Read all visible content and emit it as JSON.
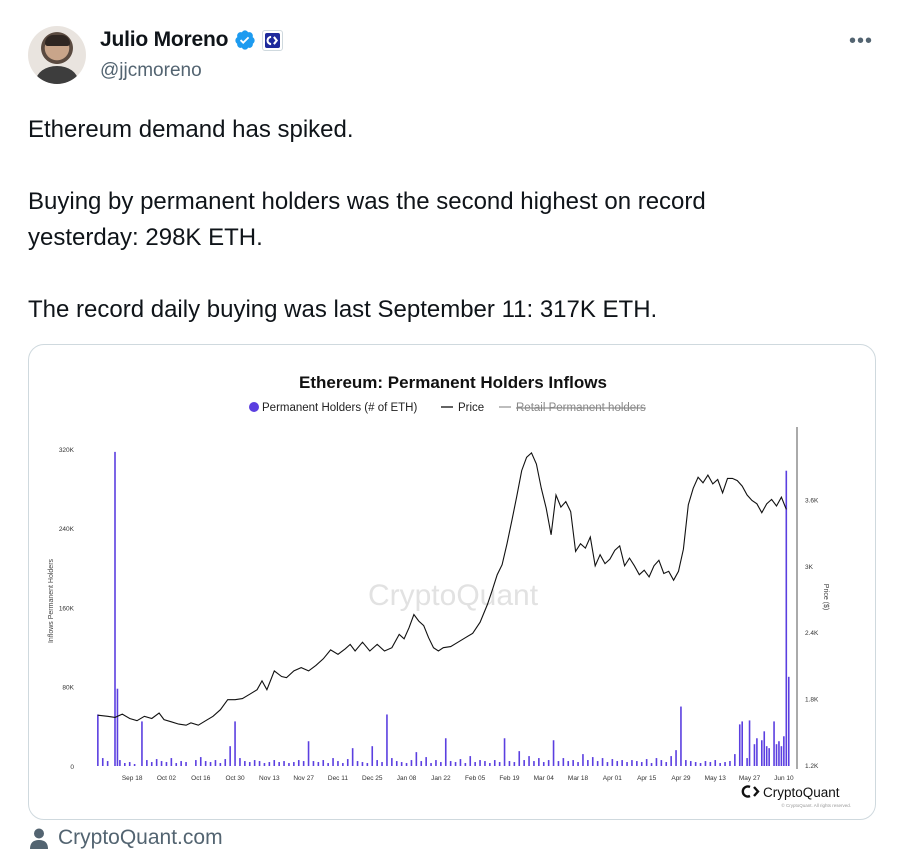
{
  "author": {
    "name": "Julio Moreno",
    "handle": "@jjcmoreno",
    "verified": true,
    "more_label": "•••"
  },
  "tweet": {
    "line1": "Ethereum demand has spiked.",
    "line2": "Buying by permanent holders was the second highest on record",
    "line3": "yesterday: 298K ETH.",
    "line4": "The record daily buying was last September 11: 317K ETH."
  },
  "card_source": "CryptoQuant.com",
  "colors": {
    "bar": "#5b3fe0",
    "price": "#111111",
    "retail": "#9a9a9a",
    "verified": "#1d9bf0"
  },
  "chart_data": {
    "type": "bar",
    "title": "Ethereum: Permanent Holders Inflows",
    "legend": [
      {
        "name": "Permanent Holders (# of ETH)",
        "marker": "dot"
      },
      {
        "name": "Price",
        "marker": "line"
      },
      {
        "name": "Retail Permanent holders",
        "marker": "line",
        "struck": true
      }
    ],
    "watermark": "CryptoQuant",
    "brand": "CryptoQuant",
    "copyright": "© CryptoQuant. All rights reserved.",
    "ylabel": "Inflows Permanent Holders",
    "y2label": "Price ($)",
    "y_ticks": [
      "0",
      "80K",
      "160K",
      "240K",
      "320K"
    ],
    "y2_ticks": [
      "1.2K",
      "1.8K",
      "2.4K",
      "3K",
      "3.6K"
    ],
    "x_ticks": [
      "Sep 18",
      "Oct 02",
      "Oct 16",
      "Oct 30",
      "Nov 13",
      "Nov 27",
      "Dec 11",
      "Dec 25",
      "Jan 08",
      "Jan 22",
      "Feb 05",
      "Feb 19",
      "Mar 04",
      "Mar 18",
      "Apr 01",
      "Apr 15",
      "Apr 29",
      "May 13",
      "May 27",
      "Jun 10"
    ],
    "ylim": [
      0,
      330000
    ],
    "y2lim": [
      1200,
      4200
    ],
    "highlights": [
      {
        "date": "Sep 11",
        "value": 317000
      },
      {
        "date": "Jun 11",
        "value": 298000
      }
    ],
    "bars": [
      {
        "day": -7,
        "value": 52000
      },
      {
        "day": -5,
        "value": 8000
      },
      {
        "day": -3,
        "value": 5000
      },
      {
        "day": 0,
        "value": 317000
      },
      {
        "day": 1,
        "value": 78000
      },
      {
        "day": 2,
        "value": 6000
      },
      {
        "day": 4,
        "value": 3000
      },
      {
        "day": 6,
        "value": 4000
      },
      {
        "day": 8,
        "value": 2000
      },
      {
        "day": 11,
        "value": 45000
      },
      {
        "day": 13,
        "value": 6000
      },
      {
        "day": 15,
        "value": 4000
      },
      {
        "day": 17,
        "value": 7000
      },
      {
        "day": 19,
        "value": 5000
      },
      {
        "day": 21,
        "value": 4000
      },
      {
        "day": 23,
        "value": 8000
      },
      {
        "day": 25,
        "value": 3000
      },
      {
        "day": 27,
        "value": 5000
      },
      {
        "day": 29,
        "value": 4000
      },
      {
        "day": 33,
        "value": 6000
      },
      {
        "day": 35,
        "value": 9000
      },
      {
        "day": 37,
        "value": 5000
      },
      {
        "day": 39,
        "value": 4000
      },
      {
        "day": 41,
        "value": 6000
      },
      {
        "day": 43,
        "value": 3000
      },
      {
        "day": 45,
        "value": 7000
      },
      {
        "day": 47,
        "value": 20000
      },
      {
        "day": 49,
        "value": 45000
      },
      {
        "day": 51,
        "value": 8000
      },
      {
        "day": 53,
        "value": 5000
      },
      {
        "day": 55,
        "value": 4000
      },
      {
        "day": 57,
        "value": 6000
      },
      {
        "day": 59,
        "value": 5000
      },
      {
        "day": 61,
        "value": 3000
      },
      {
        "day": 63,
        "value": 4000
      },
      {
        "day": 65,
        "value": 6000
      },
      {
        "day": 67,
        "value": 4000
      },
      {
        "day": 69,
        "value": 5000
      },
      {
        "day": 71,
        "value": 3000
      },
      {
        "day": 73,
        "value": 4000
      },
      {
        "day": 75,
        "value": 6000
      },
      {
        "day": 77,
        "value": 5000
      },
      {
        "day": 79,
        "value": 25000
      },
      {
        "day": 81,
        "value": 5000
      },
      {
        "day": 83,
        "value": 4000
      },
      {
        "day": 85,
        "value": 6000
      },
      {
        "day": 87,
        "value": 3000
      },
      {
        "day": 89,
        "value": 8000
      },
      {
        "day": 91,
        "value": 5000
      },
      {
        "day": 93,
        "value": 3000
      },
      {
        "day": 95,
        "value": 7000
      },
      {
        "day": 97,
        "value": 18000
      },
      {
        "day": 99,
        "value": 5000
      },
      {
        "day": 101,
        "value": 4000
      },
      {
        "day": 103,
        "value": 3000
      },
      {
        "day": 105,
        "value": 20000
      },
      {
        "day": 107,
        "value": 6000
      },
      {
        "day": 109,
        "value": 4000
      },
      {
        "day": 111,
        "value": 52000
      },
      {
        "day": 113,
        "value": 8000
      },
      {
        "day": 115,
        "value": 5000
      },
      {
        "day": 117,
        "value": 4000
      },
      {
        "day": 119,
        "value": 3000
      },
      {
        "day": 121,
        "value": 6000
      },
      {
        "day": 123,
        "value": 14000
      },
      {
        "day": 125,
        "value": 5000
      },
      {
        "day": 127,
        "value": 9000
      },
      {
        "day": 129,
        "value": 3000
      },
      {
        "day": 131,
        "value": 6000
      },
      {
        "day": 133,
        "value": 4000
      },
      {
        "day": 135,
        "value": 28000
      },
      {
        "day": 137,
        "value": 5000
      },
      {
        "day": 139,
        "value": 4000
      },
      {
        "day": 141,
        "value": 7000
      },
      {
        "day": 143,
        "value": 3000
      },
      {
        "day": 145,
        "value": 10000
      },
      {
        "day": 147,
        "value": 4000
      },
      {
        "day": 149,
        "value": 6000
      },
      {
        "day": 151,
        "value": 5000
      },
      {
        "day": 153,
        "value": 3000
      },
      {
        "day": 155,
        "value": 6000
      },
      {
        "day": 157,
        "value": 4000
      },
      {
        "day": 159,
        "value": 28000
      },
      {
        "day": 161,
        "value": 5000
      },
      {
        "day": 163,
        "value": 4000
      },
      {
        "day": 165,
        "value": 15000
      },
      {
        "day": 167,
        "value": 6000
      },
      {
        "day": 169,
        "value": 10000
      },
      {
        "day": 171,
        "value": 5000
      },
      {
        "day": 173,
        "value": 8000
      },
      {
        "day": 175,
        "value": 4000
      },
      {
        "day": 177,
        "value": 6000
      },
      {
        "day": 179,
        "value": 26000
      },
      {
        "day": 181,
        "value": 5000
      },
      {
        "day": 183,
        "value": 8000
      },
      {
        "day": 185,
        "value": 5000
      },
      {
        "day": 187,
        "value": 6000
      },
      {
        "day": 189,
        "value": 4000
      },
      {
        "day": 191,
        "value": 12000
      },
      {
        "day": 193,
        "value": 6000
      },
      {
        "day": 195,
        "value": 9000
      },
      {
        "day": 197,
        "value": 5000
      },
      {
        "day": 199,
        "value": 8000
      },
      {
        "day": 201,
        "value": 4000
      },
      {
        "day": 203,
        "value": 7000
      },
      {
        "day": 205,
        "value": 5000
      },
      {
        "day": 207,
        "value": 6000
      },
      {
        "day": 209,
        "value": 4000
      },
      {
        "day": 211,
        "value": 6000
      },
      {
        "day": 213,
        "value": 5000
      },
      {
        "day": 215,
        "value": 4000
      },
      {
        "day": 217,
        "value": 7000
      },
      {
        "day": 219,
        "value": 3000
      },
      {
        "day": 221,
        "value": 8000
      },
      {
        "day": 223,
        "value": 6000
      },
      {
        "day": 225,
        "value": 4000
      },
      {
        "day": 227,
        "value": 10000
      },
      {
        "day": 229,
        "value": 16000
      },
      {
        "day": 231,
        "value": 60000
      },
      {
        "day": 233,
        "value": 6000
      },
      {
        "day": 235,
        "value": 5000
      },
      {
        "day": 237,
        "value": 4000
      },
      {
        "day": 239,
        "value": 3000
      },
      {
        "day": 241,
        "value": 5000
      },
      {
        "day": 243,
        "value": 4000
      },
      {
        "day": 245,
        "value": 6000
      },
      {
        "day": 247,
        "value": 3000
      },
      {
        "day": 249,
        "value": 4000
      },
      {
        "day": 251,
        "value": 5000
      },
      {
        "day": 253,
        "value": 12000
      },
      {
        "day": 255,
        "value": 42000
      },
      {
        "day": 256,
        "value": 45000
      },
      {
        "day": 258,
        "value": 8000
      },
      {
        "day": 259,
        "value": 46000
      },
      {
        "day": 261,
        "value": 22000
      },
      {
        "day": 262,
        "value": 28000
      },
      {
        "day": 264,
        "value": 26000
      },
      {
        "day": 265,
        "value": 35000
      },
      {
        "day": 266,
        "value": 20000
      },
      {
        "day": 267,
        "value": 18000
      },
      {
        "day": 269,
        "value": 45000
      },
      {
        "day": 270,
        "value": 22000
      },
      {
        "day": 271,
        "value": 25000
      },
      {
        "day": 272,
        "value": 20000
      },
      {
        "day": 273,
        "value": 30000
      },
      {
        "day": 274,
        "value": 298000
      },
      {
        "day": 275,
        "value": 90000
      }
    ],
    "price": [
      [
        -7,
        1650
      ],
      [
        -3,
        1640
      ],
      [
        0,
        1630
      ],
      [
        3,
        1660
      ],
      [
        6,
        1620
      ],
      [
        9,
        1600
      ],
      [
        12,
        1640
      ],
      [
        15,
        1620
      ],
      [
        18,
        1670
      ],
      [
        20,
        1610
      ],
      [
        23,
        1590
      ],
      [
        26,
        1570
      ],
      [
        29,
        1560
      ],
      [
        31,
        1580
      ],
      [
        34,
        1560
      ],
      [
        37,
        1600
      ],
      [
        40,
        1640
      ],
      [
        43,
        1700
      ],
      [
        46,
        1790
      ],
      [
        49,
        1790
      ],
      [
        52,
        1800
      ],
      [
        55,
        1840
      ],
      [
        58,
        1880
      ],
      [
        60,
        1960
      ],
      [
        62,
        1880
      ],
      [
        65,
        2050
      ],
      [
        68,
        2000
      ],
      [
        70,
        1990
      ],
      [
        73,
        2050
      ],
      [
        76,
        2080
      ],
      [
        79,
        2050
      ],
      [
        82,
        2100
      ],
      [
        85,
        2160
      ],
      [
        88,
        2240
      ],
      [
        91,
        2200
      ],
      [
        94,
        2250
      ],
      [
        96,
        2290
      ],
      [
        98,
        2230
      ],
      [
        101,
        2310
      ],
      [
        104,
        2230
      ],
      [
        107,
        2290
      ],
      [
        110,
        2230
      ],
      [
        113,
        2260
      ],
      [
        116,
        2380
      ],
      [
        118,
        2340
      ],
      [
        120,
        2440
      ],
      [
        122,
        2560
      ],
      [
        124,
        2500
      ],
      [
        126,
        2460
      ],
      [
        128,
        2350
      ],
      [
        130,
        2260
      ],
      [
        132,
        2230
      ],
      [
        134,
        2260
      ],
      [
        137,
        2270
      ],
      [
        140,
        2310
      ],
      [
        143,
        2350
      ],
      [
        146,
        2390
      ],
      [
        149,
        2490
      ],
      [
        152,
        2650
      ],
      [
        154,
        2780
      ],
      [
        156,
        2920
      ],
      [
        158,
        3010
      ],
      [
        160,
        3200
      ],
      [
        162,
        3410
      ],
      [
        164,
        3630
      ],
      [
        166,
        3860
      ],
      [
        168,
        3980
      ],
      [
        170,
        4020
      ],
      [
        172,
        3920
      ],
      [
        174,
        3700
      ],
      [
        176,
        3520
      ],
      [
        178,
        3280
      ],
      [
        180,
        3640
      ],
      [
        182,
        3530
      ],
      [
        184,
        3580
      ],
      [
        186,
        3490
      ],
      [
        188,
        3130
      ],
      [
        190,
        3200
      ],
      [
        192,
        3160
      ],
      [
        194,
        3260
      ],
      [
        196,
        3000
      ],
      [
        198,
        3100
      ],
      [
        200,
        3020
      ],
      [
        202,
        3060
      ],
      [
        204,
        3140
      ],
      [
        206,
        3180
      ],
      [
        208,
        3000
      ],
      [
        210,
        3070
      ],
      [
        212,
        3000
      ],
      [
        214,
        2920
      ],
      [
        216,
        2960
      ],
      [
        218,
        2900
      ],
      [
        220,
        3000
      ],
      [
        222,
        3050
      ],
      [
        224,
        2930
      ],
      [
        226,
        2950
      ],
      [
        228,
        2870
      ],
      [
        230,
        2950
      ],
      [
        232,
        3150
      ],
      [
        234,
        3550
      ],
      [
        236,
        3700
      ],
      [
        238,
        3800
      ],
      [
        240,
        3750
      ],
      [
        242,
        3820
      ],
      [
        244,
        3740
      ],
      [
        246,
        3780
      ],
      [
        248,
        3660
      ],
      [
        250,
        3790
      ],
      [
        252,
        3790
      ],
      [
        254,
        3770
      ],
      [
        256,
        3720
      ],
      [
        258,
        3640
      ],
      [
        260,
        3590
      ],
      [
        262,
        3560
      ],
      [
        264,
        3480
      ],
      [
        266,
        3560
      ],
      [
        268,
        3600
      ],
      [
        270,
        3540
      ],
      [
        272,
        3620
      ],
      [
        274,
        3510
      ]
    ]
  }
}
